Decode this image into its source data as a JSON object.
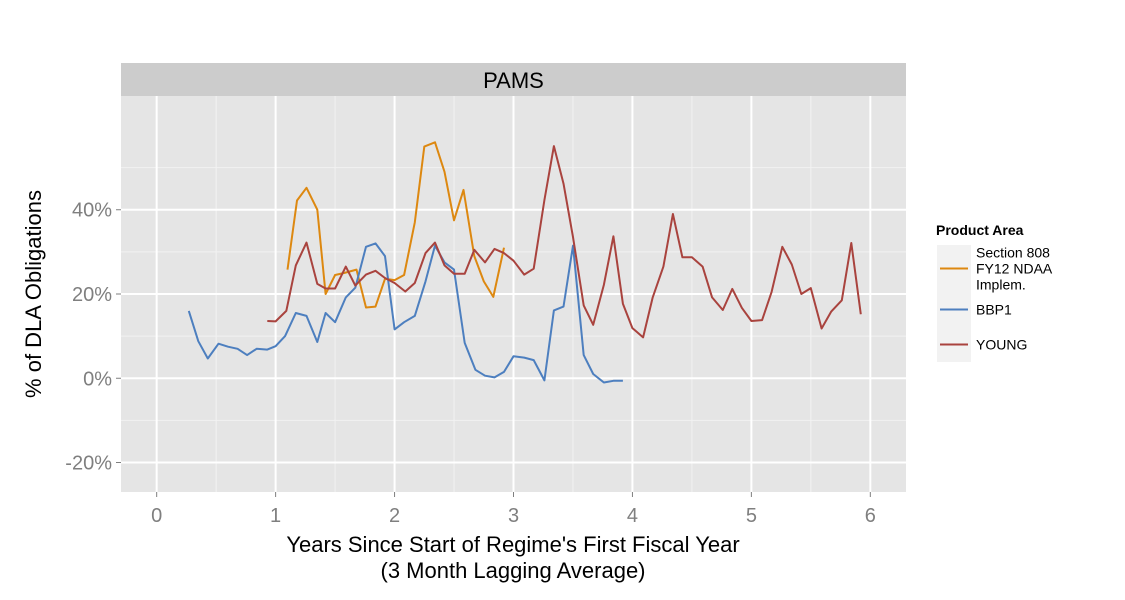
{
  "colors": {
    "panel_bg": "#E5E5E5",
    "strip_bg": "#CCCCCC",
    "grid_major": "#FFFFFF",
    "grid_minor": "#F2F2F2",
    "tick_text": "#7F7F7F",
    "legend_key_bg": "#F2F2F2"
  },
  "chart_data": {
    "type": "line",
    "facet_label": "PAMS",
    "xlabel": "Years Since Start of Regime's First Fiscal Year",
    "xlabel_line2": "(3 Month Lagging Average)",
    "ylabel": "% of DLA Obligations",
    "xlim": [
      -0.3,
      6.3
    ],
    "ylim": [
      -27,
      67
    ],
    "x_ticks": [
      0,
      1,
      2,
      3,
      4,
      5,
      6
    ],
    "x_tick_labels": [
      "0",
      "1",
      "2",
      "3",
      "4",
      "5",
      "6"
    ],
    "y_ticks": [
      -20,
      0,
      20,
      40
    ],
    "y_tick_labels": [
      "-20%",
      "0%",
      "20%",
      "40%"
    ],
    "grid": true,
    "legend": {
      "title": "Product Area",
      "position": "right"
    },
    "series": [
      {
        "name": "Section 808 FY12 NDAA Implem.",
        "label_lines": [
          "Section 808",
          "FY12 NDAA",
          "Implem."
        ],
        "color": "#DD8810",
        "points": [
          [
            1.1,
            25.8
          ],
          [
            1.18,
            42.2
          ],
          [
            1.26,
            45.2
          ],
          [
            1.35,
            40
          ],
          [
            1.42,
            20
          ],
          [
            1.5,
            24.5
          ],
          [
            1.58,
            25
          ],
          [
            1.68,
            25.8
          ],
          [
            1.76,
            16.8
          ],
          [
            1.84,
            17
          ],
          [
            1.92,
            23.6
          ],
          [
            2.0,
            23.3
          ],
          [
            2.08,
            24.5
          ],
          [
            2.17,
            37
          ],
          [
            2.25,
            55
          ],
          [
            2.34,
            56
          ],
          [
            2.42,
            49
          ],
          [
            2.5,
            37.5
          ],
          [
            2.58,
            44.7
          ],
          [
            2.67,
            29
          ],
          [
            2.75,
            23
          ],
          [
            2.83,
            19.3
          ],
          [
            2.92,
            31
          ]
        ]
      },
      {
        "name": "BBP1",
        "label_lines": [
          "BBP1"
        ],
        "color": "#4D7FBF",
        "points": [
          [
            0.27,
            16
          ],
          [
            0.35,
            8.8
          ],
          [
            0.43,
            4.7
          ],
          [
            0.52,
            8.2
          ],
          [
            0.6,
            7.5
          ],
          [
            0.68,
            7
          ],
          [
            0.76,
            5.5
          ],
          [
            0.84,
            7
          ],
          [
            0.93,
            6.8
          ],
          [
            1.0,
            7.6
          ],
          [
            1.08,
            10
          ],
          [
            1.17,
            15.5
          ],
          [
            1.26,
            14.8
          ],
          [
            1.35,
            8.6
          ],
          [
            1.42,
            15.5
          ],
          [
            1.5,
            13.3
          ],
          [
            1.59,
            19.2
          ],
          [
            1.67,
            21.5
          ],
          [
            1.76,
            31.2
          ],
          [
            1.84,
            32
          ],
          [
            1.92,
            29
          ],
          [
            2.0,
            11.6
          ],
          [
            2.08,
            13.3
          ],
          [
            2.17,
            14.8
          ],
          [
            2.26,
            23
          ],
          [
            2.34,
            31.5
          ],
          [
            2.42,
            27.5
          ],
          [
            2.5,
            25.8
          ],
          [
            2.59,
            8.4
          ],
          [
            2.68,
            2
          ],
          [
            2.76,
            0.6
          ],
          [
            2.84,
            0.2
          ],
          [
            2.92,
            1.5
          ],
          [
            3.0,
            5.2
          ],
          [
            3.09,
            4.9
          ],
          [
            3.17,
            4.3
          ],
          [
            3.26,
            -0.5
          ],
          [
            3.34,
            16.1
          ],
          [
            3.42,
            17
          ],
          [
            3.5,
            31.5
          ],
          [
            3.59,
            5.5
          ],
          [
            3.67,
            1
          ],
          [
            3.76,
            -1
          ],
          [
            3.84,
            -0.6
          ],
          [
            3.92,
            -0.6
          ]
        ]
      },
      {
        "name": "YOUNG",
        "label_lines": [
          "YOUNG"
        ],
        "color": "#A9433E",
        "points": [
          [
            0.93,
            13.6
          ],
          [
            1.0,
            13.5
          ],
          [
            1.09,
            16
          ],
          [
            1.17,
            26.8
          ],
          [
            1.26,
            32.2
          ],
          [
            1.35,
            22.4
          ],
          [
            1.42,
            21.3
          ],
          [
            1.5,
            21.3
          ],
          [
            1.59,
            26.5
          ],
          [
            1.67,
            22
          ],
          [
            1.76,
            24.6
          ],
          [
            1.84,
            25.5
          ],
          [
            1.92,
            23.8
          ],
          [
            2.0,
            22.6
          ],
          [
            2.09,
            20.6
          ],
          [
            2.17,
            22.6
          ],
          [
            2.26,
            29.7
          ],
          [
            2.34,
            32.2
          ],
          [
            2.42,
            26.8
          ],
          [
            2.5,
            24.8
          ],
          [
            2.59,
            24.8
          ],
          [
            2.67,
            30.5
          ],
          [
            2.76,
            27.5
          ],
          [
            2.84,
            30.7
          ],
          [
            2.92,
            29.7
          ],
          [
            3.0,
            27.9
          ],
          [
            3.09,
            24.6
          ],
          [
            3.17,
            26
          ],
          [
            3.26,
            42.3
          ],
          [
            3.34,
            55.1
          ],
          [
            3.42,
            46.2
          ],
          [
            3.5,
            33.5
          ],
          [
            3.59,
            17.3
          ],
          [
            3.67,
            12.7
          ],
          [
            3.76,
            22.2
          ],
          [
            3.84,
            33.7
          ],
          [
            3.92,
            17.7
          ],
          [
            4.0,
            11.9
          ],
          [
            4.09,
            9.7
          ],
          [
            4.17,
            19.2
          ],
          [
            4.26,
            26.5
          ],
          [
            4.34,
            39
          ],
          [
            4.42,
            28.7
          ],
          [
            4.5,
            28.7
          ],
          [
            4.59,
            26.5
          ],
          [
            4.67,
            19.2
          ],
          [
            4.76,
            16.2
          ],
          [
            4.84,
            21.2
          ],
          [
            4.92,
            16.7
          ],
          [
            5.0,
            13.6
          ],
          [
            5.09,
            13.8
          ],
          [
            5.17,
            20.5
          ],
          [
            5.26,
            31.2
          ],
          [
            5.34,
            27
          ],
          [
            5.42,
            20
          ],
          [
            5.5,
            21.4
          ],
          [
            5.59,
            11.8
          ],
          [
            5.67,
            15.8
          ],
          [
            5.76,
            18.5
          ],
          [
            5.84,
            32.1
          ],
          [
            5.92,
            15.2
          ]
        ]
      }
    ]
  }
}
